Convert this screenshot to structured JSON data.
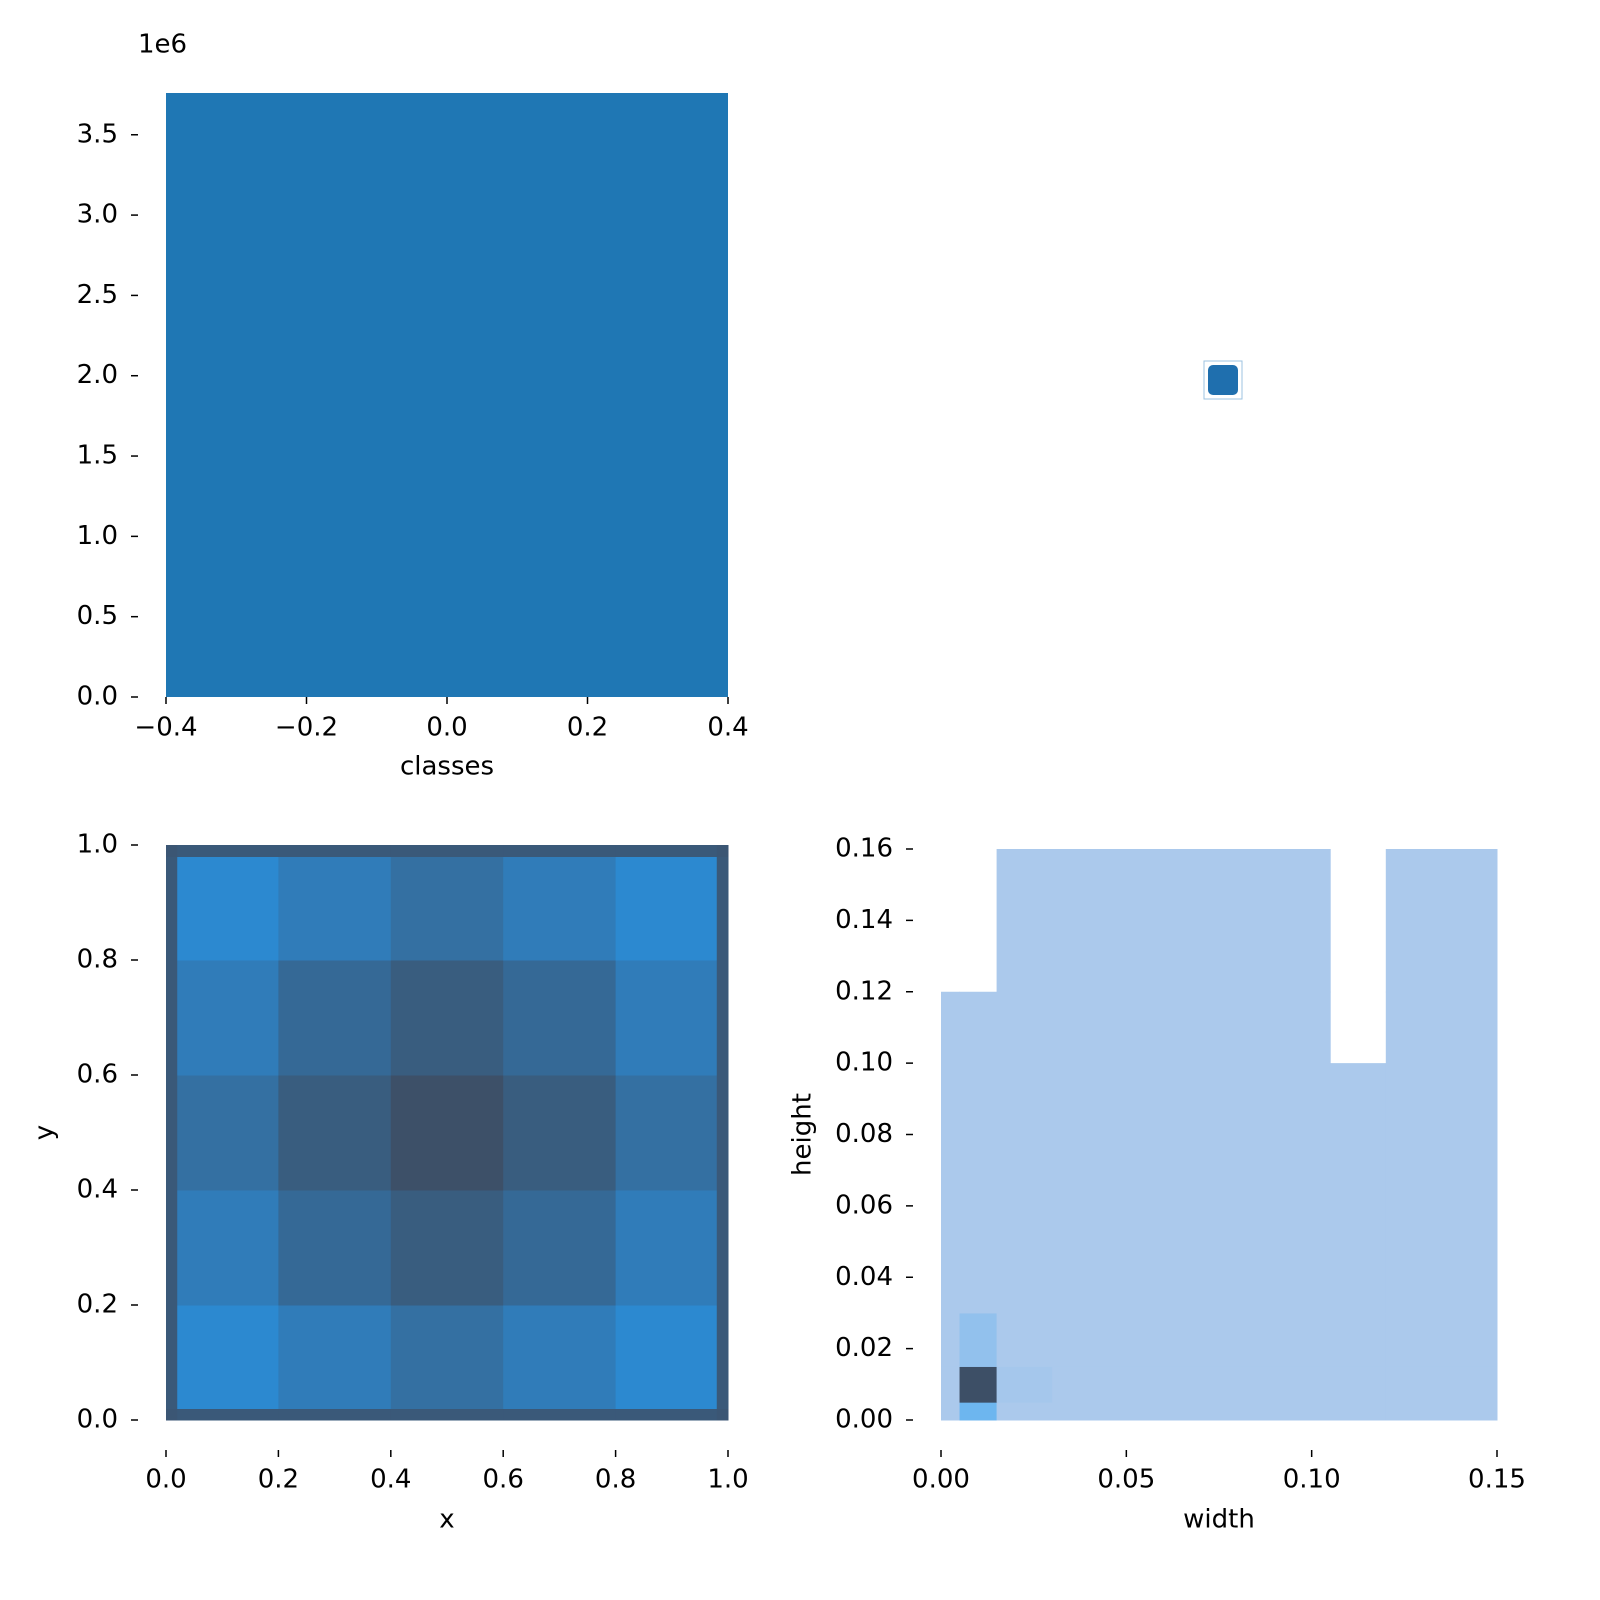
{
  "chart_data": [
    {
      "type": "histogram",
      "xlabel": "classes",
      "offset_label": "1e6",
      "color": "#1f77b4",
      "bins": [
        -0.4,
        0.4
      ],
      "counts": [
        3760000
      ],
      "xlim": [
        -0.4,
        0.4
      ],
      "ylim": [
        0,
        3760000
      ],
      "xticks": [
        {
          "value": -0.4,
          "label": "−0.4"
        },
        {
          "value": -0.2,
          "label": "−0.2"
        },
        {
          "value": 0,
          "label": "0.0"
        },
        0.2,
        0.4
      ],
      "yticks": [
        {
          "value": 0,
          "label": "0.0"
        },
        {
          "value": 500000,
          "label": "0.5"
        },
        {
          "value": 1000000,
          "label": "1.0"
        },
        {
          "value": 1500000,
          "label": "1.5"
        },
        {
          "value": 2000000,
          "label": "2.0"
        },
        {
          "value": 2500000,
          "label": "2.5"
        },
        {
          "value": 3000000,
          "label": "3.0"
        },
        {
          "value": 3500000,
          "label": "3.5"
        }
      ]
    },
    {
      "type": "hist2d",
      "xlabel": "x",
      "ylabel": "y",
      "cmap": [
        "#2a8fdc",
        "#3d5068"
      ],
      "xbins": [
        0,
        0.02,
        0.2,
        0.4,
        0.6,
        0.8,
        0.98,
        1
      ],
      "ybins": [
        0,
        0.02,
        0.2,
        0.4,
        0.6,
        0.8,
        0.98,
        1
      ],
      "counts": [
        [
          0.9,
          0.85,
          0.85,
          0.85,
          0.85,
          0.85,
          0.9
        ],
        [
          0.85,
          0.1,
          0.3,
          0.5,
          0.3,
          0.1,
          0.85
        ],
        [
          0.85,
          0.3,
          0.6,
          0.8,
          0.6,
          0.3,
          0.85
        ],
        [
          0.85,
          0.5,
          0.8,
          1.0,
          0.8,
          0.5,
          0.85
        ],
        [
          0.85,
          0.3,
          0.6,
          0.8,
          0.6,
          0.3,
          0.85
        ],
        [
          0.85,
          0.1,
          0.3,
          0.5,
          0.3,
          0.1,
          0.85
        ],
        [
          0.9,
          0.85,
          0.85,
          0.85,
          0.85,
          0.85,
          0.9
        ]
      ],
      "xlim": [
        0,
        1
      ],
      "ylim": [
        0,
        1
      ],
      "xticks": [
        {
          "value": 0,
          "label": "0.0"
        },
        0.2,
        0.4,
        0.6,
        0.8,
        {
          "value": 1,
          "label": "1.0"
        }
      ],
      "yticks": [
        {
          "value": 0,
          "label": "0.0"
        },
        0.2,
        0.4,
        0.6,
        0.8,
        {
          "value": 1,
          "label": "1.0"
        }
      ]
    },
    {
      "type": "hist2d",
      "xlabel": "width",
      "ylabel": "height",
      "cmap": [
        "#abc9ec",
        "#abc9ec",
        "#2ea3f2",
        "#3d4f66"
      ],
      "xbins": [
        0,
        0.005,
        0.015,
        0.03,
        0.105,
        0.12,
        0.15
      ],
      "ybins": [
        0,
        0.005,
        0.015,
        0.03,
        0.1,
        0.12,
        0.16
      ],
      "counts": [
        [
          0.2,
          0.5,
          0.15,
          0.1,
          0.03,
          0.01
        ],
        [
          0.3,
          1.0,
          0.35,
          0.1,
          0.03,
          0.01
        ],
        [
          0.1,
          0.4,
          0.3,
          0.12,
          0.03,
          0.01
        ],
        [
          0.1,
          0.1,
          0.1,
          0.1,
          0.03,
          0.01
        ],
        [
          0.05,
          0.05,
          0.05,
          0.05,
          0,
          0.01
        ],
        [
          0,
          0,
          0.01,
          0.01,
          0,
          0.01
        ]
      ],
      "xlim": [
        0,
        0.15
      ],
      "ylim": [
        0,
        0.16
      ],
      "xticks": [
        {
          "value": 0,
          "label": "0.00"
        },
        0.05,
        {
          "value": 0.1,
          "label": "0.10"
        },
        0.15
      ],
      "yticks": [
        {
          "value": 0,
          "label": "0.00"
        },
        0.02,
        0.04,
        0.06,
        0.08,
        {
          "value": 0.1,
          "label": "0.10"
        },
        0.12,
        0.14,
        0.16
      ]
    }
  ]
}
